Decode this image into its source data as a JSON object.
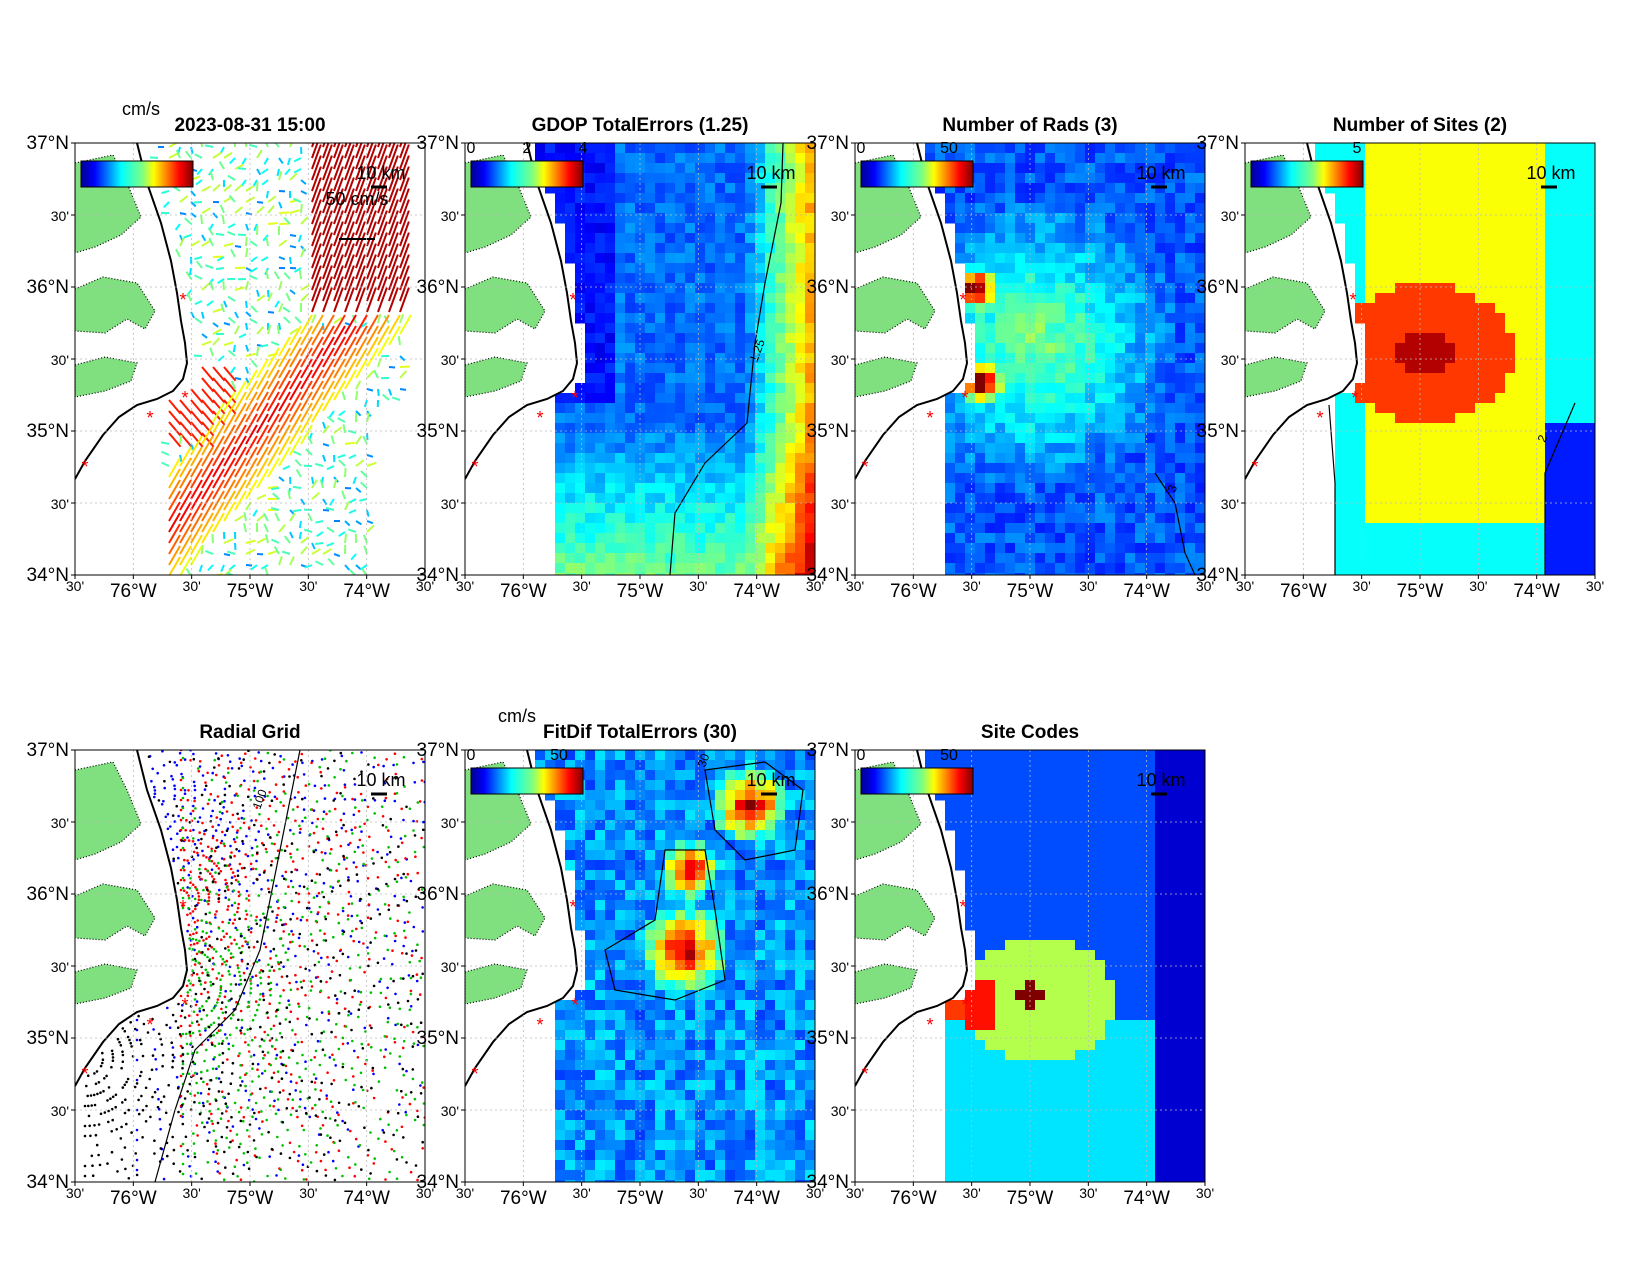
{
  "figure": {
    "axes": {
      "lat_labels": [
        "37°N",
        "30'",
        "36°N",
        "30'",
        "35°N",
        "30'",
        "34°N"
      ],
      "lon_labels": [
        "30'",
        "76°W",
        "30'",
        "75°W",
        "30'",
        "74°W",
        "30'"
      ],
      "lat_range": [
        34,
        37
      ],
      "lon_range": [
        -76.5,
        -73.5
      ]
    },
    "scale_label": "10 km",
    "colors": {
      "land": "#80e080",
      "ocean_low": "#0000ff",
      "site_marker": "#ff0000",
      "radial_grid_sites": [
        "#0000ff",
        "#ff0000",
        "#00c000",
        "#000000"
      ]
    },
    "panels": [
      {
        "id": "totals",
        "title": "2023-08-31 15:00",
        "colorbar_unit": "cm/s",
        "reference_vector_label": "50 cm/s",
        "colormap": "jet",
        "show_colorbar_ticks": false
      },
      {
        "id": "gdop",
        "title": "GDOP TotalErrors (1.25)",
        "colorbar_ticks": [
          "0",
          "2",
          "4"
        ],
        "contour_label": "1.25",
        "colormap": "jet"
      },
      {
        "id": "rads",
        "title": "Number of Rads (3)",
        "colorbar_ticks": [
          "0",
          "50"
        ],
        "contour_label": "3",
        "colormap": "jet"
      },
      {
        "id": "sites",
        "title": "Number of Sites (2)",
        "colorbar_ticks": [
          "5"
        ],
        "contour_label": "2",
        "colormap": "jet"
      },
      {
        "id": "radial-grid",
        "title": "Radial Grid",
        "contour_label": "100"
      },
      {
        "id": "fitdif",
        "title": "FitDif TotalErrors (30)",
        "colorbar_unit": "cm/s",
        "colorbar_ticks": [
          "0",
          "50"
        ],
        "contour_label": "30",
        "colormap": "jet"
      },
      {
        "id": "site-codes",
        "title": "Site Codes",
        "colorbar_ticks": [
          "0",
          "50"
        ],
        "colormap": "jet"
      }
    ]
  }
}
